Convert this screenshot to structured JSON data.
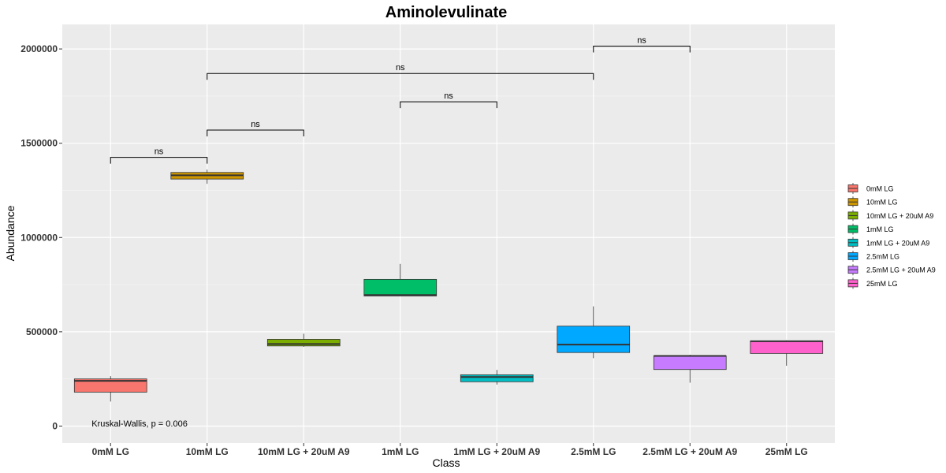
{
  "chart_data": {
    "type": "boxplot",
    "title": "Aminolevulinate",
    "xlabel": "Class",
    "ylabel": "Abundance",
    "ylim": [
      -90000,
      2130000
    ],
    "yticks": [
      0,
      500000,
      1000000,
      1500000,
      2000000
    ],
    "yticklabels": [
      "0",
      "500000",
      "1000000",
      "1500000",
      "2000000"
    ],
    "grid": true,
    "legend_position": "right",
    "categories": [
      "0mM LG",
      "10mM LG",
      "10mM LG + 20uM A9",
      "1mM LG",
      "1mM LG + 20uM A9",
      "2.5mM LG",
      "2.5mM LG + 20uM A9",
      "25mM LG"
    ],
    "boxes": [
      {
        "category": "0mM LG",
        "min": 130000,
        "q1": 180000,
        "median": 240000,
        "q3": 250000,
        "max": 265000,
        "color": "#F8766D"
      },
      {
        "category": "10mM LG",
        "min": 1285000,
        "q1": 1310000,
        "median": 1330000,
        "q3": 1345000,
        "max": 1360000,
        "color": "#CD9600"
      },
      {
        "category": "10mM LG + 20uM A9",
        "min": 420000,
        "q1": 425000,
        "median": 435000,
        "q3": 460000,
        "max": 490000,
        "color": "#7CAE00"
      },
      {
        "category": "1mM LG",
        "min": 690000,
        "q1": 690000,
        "median": 695000,
        "q3": 778000,
        "max": 860000,
        "color": "#00BE67"
      },
      {
        "category": "1mM LG + 20uM A9",
        "min": 220000,
        "q1": 235000,
        "median": 260000,
        "q3": 272000,
        "max": 298000,
        "color": "#00BFC4"
      },
      {
        "category": "2.5mM LG",
        "min": 360000,
        "q1": 390000,
        "median": 432000,
        "q3": 530000,
        "max": 635000,
        "color": "#00A9FF"
      },
      {
        "category": "2.5mM LG + 20uM A9",
        "min": 230000,
        "q1": 300000,
        "median": 372000,
        "q3": 372000,
        "max": 378000,
        "color": "#C77CFF"
      },
      {
        "category": "25mM LG",
        "min": 320000,
        "q1": 385000,
        "median": 450000,
        "q3": 452000,
        "max": 455000,
        "color": "#FF61CC"
      }
    ],
    "comparisons": [
      {
        "from": "0mM LG",
        "to": "10mM LG",
        "y": 1425000,
        "label": "ns"
      },
      {
        "from": "10mM LG",
        "to": "10mM LG + 20uM A9",
        "y": 1570000,
        "label": "ns"
      },
      {
        "from": "1mM LG",
        "to": "1mM LG + 20uM A9",
        "y": 1720000,
        "label": "ns"
      },
      {
        "from": "10mM LG",
        "to": "2.5mM LG",
        "y": 1870000,
        "label": "ns"
      },
      {
        "from": "2.5mM LG",
        "to": "2.5mM LG + 20uM A9",
        "y": 2015000,
        "label": "ns"
      }
    ],
    "annotation": {
      "text": "Kruskal-Wallis, p = 0.006",
      "x_category": "0mM LG",
      "y": 15000
    },
    "legend": [
      "0mM LG",
      "10mM LG",
      "10mM LG + 20uM A9",
      "1mM LG",
      "1mM LG + 20uM A9",
      "2.5mM LG",
      "2.5mM LG + 20uM A9",
      "25mM LG"
    ]
  }
}
